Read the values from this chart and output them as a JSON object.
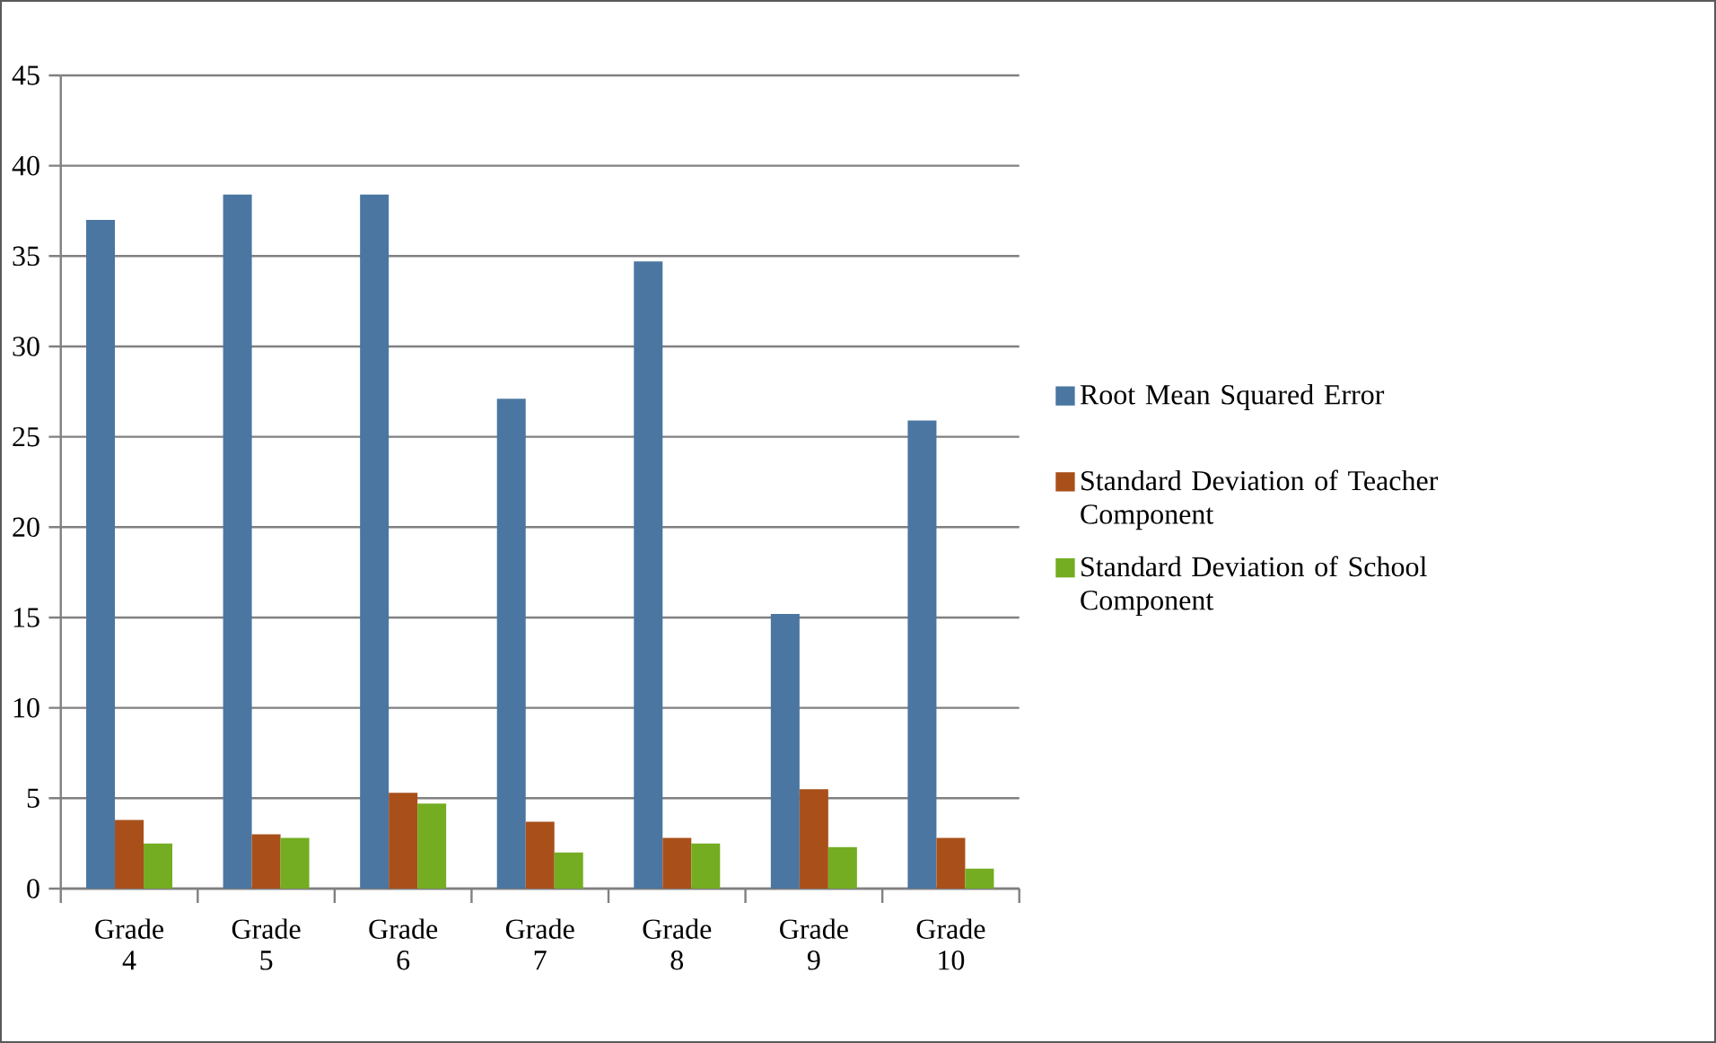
{
  "chart_data": {
    "type": "bar",
    "categories": [
      "Grade 4",
      "Grade 5",
      "Grade 6",
      "Grade 7",
      "Grade 8",
      "Grade 9",
      "Grade 10"
    ],
    "series": [
      {
        "name": "Root Mean Squared Error",
        "color": "#4a76a1",
        "values": [
          37.0,
          38.4,
          38.4,
          27.1,
          34.7,
          15.2,
          25.9
        ]
      },
      {
        "name": "Standard Deviation of Teacher Component",
        "color": "#a9501a",
        "values": [
          3.8,
          3.0,
          5.3,
          3.7,
          2.8,
          5.5,
          2.8
        ]
      },
      {
        "name": "Standard Deviation of School Component",
        "color": "#74ad22",
        "values": [
          2.5,
          2.8,
          4.7,
          2.0,
          2.5,
          2.3,
          1.1
        ]
      }
    ],
    "ylim": [
      0,
      45
    ],
    "yticks": [
      0,
      5,
      10,
      15,
      20,
      25,
      30,
      35,
      40,
      45
    ],
    "grid": "y",
    "legend": "right"
  }
}
